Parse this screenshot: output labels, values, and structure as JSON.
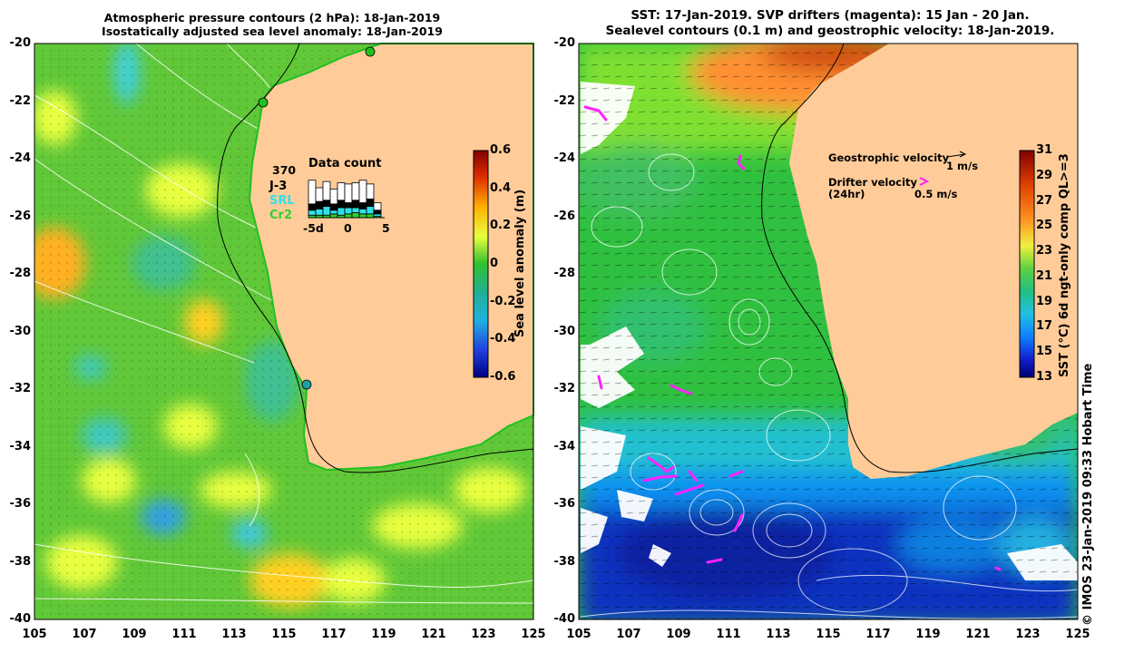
{
  "left_panel": {
    "title_line1": "Atmospheric pressure contours (2 hPa): 18-Jan-2019",
    "title_line2": "Isostatically adjusted sea level anomaly: 18-Jan-2019",
    "lat_ticks": [
      "-20",
      "-22",
      "-24",
      "-26",
      "-28",
      "-30",
      "-32",
      "-34",
      "-36",
      "-38",
      "-40"
    ],
    "lon_ticks": [
      "105",
      "107",
      "109",
      "111",
      "113",
      "115",
      "117",
      "119",
      "121",
      "123",
      "125"
    ],
    "colorbar": {
      "label": "Sea level anomaly (m)",
      "ticks": [
        "0.6",
        "0.4",
        "0.2",
        "0",
        "-0.2",
        "-0.4",
        "-0.6"
      ]
    },
    "data_count": {
      "title": "Data count",
      "max": "370",
      "legend": [
        {
          "name": "J-3",
          "color": "#000000"
        },
        {
          "name": "SRL",
          "color": "#30e0e8"
        },
        {
          "name": "Cr2",
          "color": "#30d030"
        }
      ],
      "x_ticks": [
        "-5d",
        "0",
        "5"
      ],
      "bars": [
        {
          "white": 0.95,
          "black": 0.25,
          "cyan": 0.2,
          "green": 0.1
        },
        {
          "white": 0.55,
          "black": 0.3,
          "cyan": 0.25,
          "green": 0.1
        },
        {
          "white": 0.75,
          "black": 0.25,
          "cyan": 0.35,
          "green": 0.1
        },
        {
          "white": 0.6,
          "black": 0.25,
          "cyan": 0.15,
          "green": 0.15
        },
        {
          "white": 0.7,
          "black": 0.3,
          "cyan": 0.3,
          "green": 0.1
        },
        {
          "white": 0.75,
          "black": 0.2,
          "cyan": 0.25,
          "green": 0.15
        },
        {
          "white": 0.7,
          "black": 0.3,
          "cyan": 0.2,
          "green": 0.2
        },
        {
          "white": 0.9,
          "black": 0.25,
          "cyan": 0.2,
          "green": 0.15
        },
        {
          "white": 0.6,
          "black": 0.3,
          "cyan": 0.3,
          "green": 0.15
        },
        {
          "white": 0.3,
          "black": 0.15,
          "cyan": 0.1,
          "green": 0.05
        }
      ]
    }
  },
  "right_panel": {
    "title_line1": "SST: 17-Jan-2019. SVP drifters (magenta): 15 Jan - 20 Jan.",
    "title_line2": "Sealevel contours (0.1 m) and geostrophic velocity: 18-Jan-2019.",
    "lat_ticks": [
      "-20",
      "-22",
      "-24",
      "-26",
      "-28",
      "-30",
      "-32",
      "-34",
      "-36",
      "-38",
      "-40"
    ],
    "lon_ticks": [
      "105",
      "107",
      "109",
      "111",
      "113",
      "115",
      "117",
      "119",
      "121",
      "123",
      "125"
    ],
    "colorbar": {
      "label": "SST (°C) 6d ngt-only comp QL>=3",
      "ticks": [
        "31",
        "29",
        "27",
        "25",
        "23",
        "21",
        "19",
        "17",
        "15",
        "13"
      ]
    },
    "legend": {
      "geo_label": "Geostrophic velocity",
      "geo_value": "1 m/s",
      "drifter_label": "Drifter velocity",
      "drifter_sub": "(24hr)",
      "drifter_value": "0.5 m/s"
    }
  },
  "footer": {
    "credit": "© IMOS 23-Jan-2019 09:33 Hobart Time"
  },
  "colors": {
    "land": "#ffcc99",
    "drifter": "#ff22ff"
  }
}
